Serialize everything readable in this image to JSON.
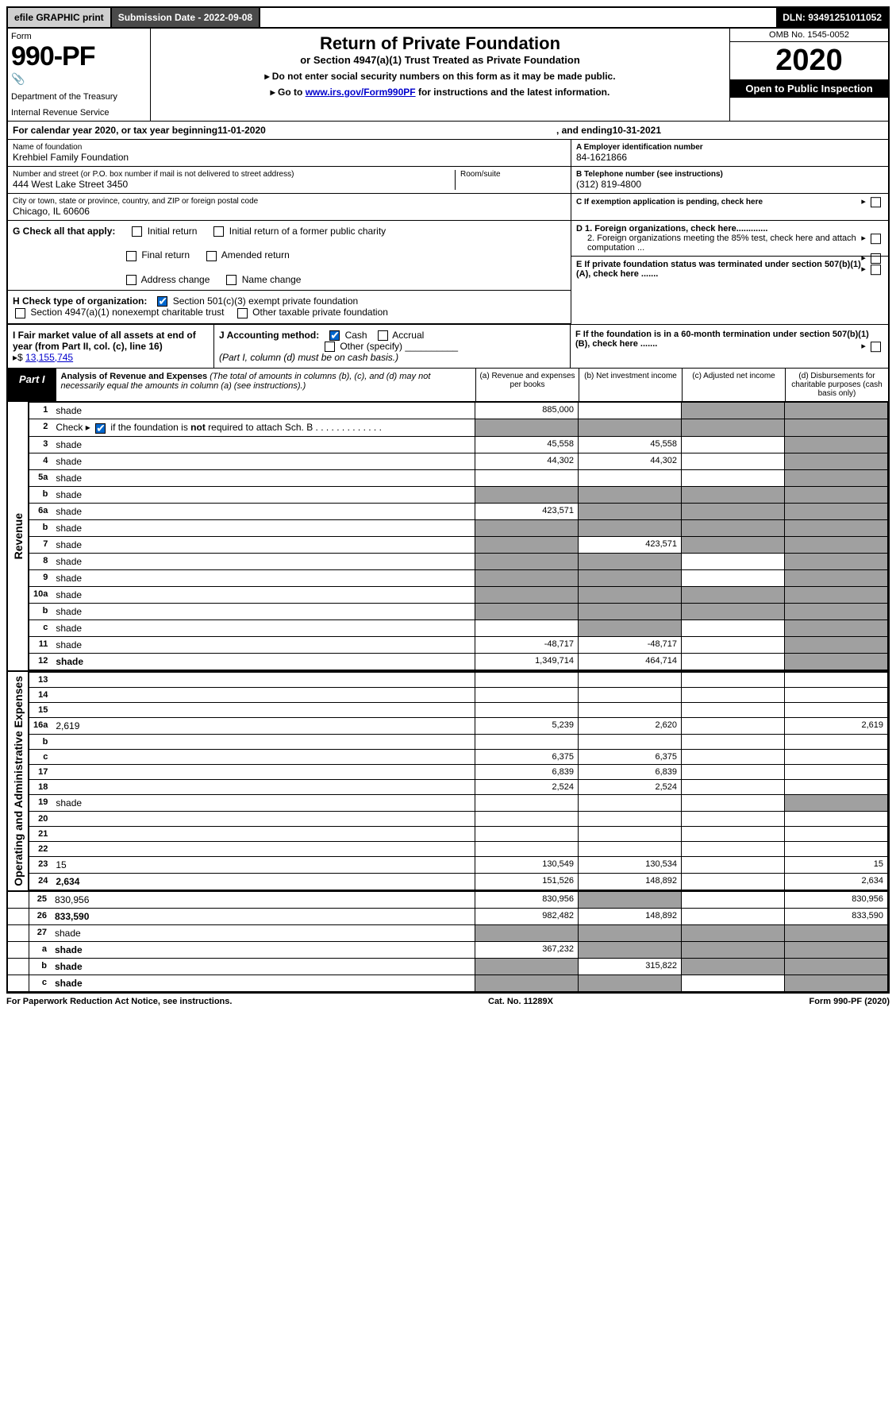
{
  "top": {
    "efile": "efile GRAPHIC print",
    "sub_label": "Submission Date - 2022-09-08",
    "dln": "DLN: 93491251011052"
  },
  "header": {
    "form_label": "Form",
    "form_num": "990-PF",
    "dept": "Department of the Treasury",
    "irs": "Internal Revenue Service",
    "title": "Return of Private Foundation",
    "sub": "or Section 4947(a)(1) Trust Treated as Private Foundation",
    "note1": "▸ Do not enter social security numbers on this form as it may be made public.",
    "note2_pre": "▸ Go to ",
    "note2_link": "www.irs.gov/Form990PF",
    "note2_post": " for instructions and the latest information.",
    "omb": "OMB No. 1545-0052",
    "year": "2020",
    "open": "Open to Public Inspection"
  },
  "calyear": {
    "pre": "For calendar year 2020, or tax year beginning ",
    "begin": "11-01-2020",
    "mid": ", and ending ",
    "end": "10-31-2021"
  },
  "info": {
    "name_lbl": "Name of foundation",
    "name": "Krehbiel Family Foundation",
    "addr_lbl": "Number and street (or P.O. box number if mail is not delivered to street address)",
    "addr": "444 West Lake Street 3450",
    "room_lbl": "Room/suite",
    "city_lbl": "City or town, state or province, country, and ZIP or foreign postal code",
    "city": "Chicago, IL  60606",
    "ein_lbl": "A Employer identification number",
    "ein": "84-1621866",
    "tel_lbl": "B Telephone number (see instructions)",
    "tel": "(312) 819-4800",
    "c": "C If exemption application is pending, check here",
    "d1": "D 1. Foreign organizations, check here.............",
    "d2": "2. Foreign organizations meeting the 85% test, check here and attach computation ...",
    "e": "E  If private foundation status was terminated under section 507(b)(1)(A), check here .......",
    "f": "F  If the foundation is in a 60-month termination under section 507(b)(1)(B), check here ......."
  },
  "g": {
    "label": "G Check all that apply:",
    "o1": "Initial return",
    "o2": "Initial return of a former public charity",
    "o3": "Final return",
    "o4": "Amended return",
    "o5": "Address change",
    "o6": "Name change"
  },
  "h": {
    "label": "H Check type of organization:",
    "o1": "Section 501(c)(3) exempt private foundation",
    "o2": "Section 4947(a)(1) nonexempt charitable trust",
    "o3": "Other taxable private foundation"
  },
  "i": {
    "label": "I Fair market value of all assets at end of year (from Part II, col. (c), line 16)",
    "arrow": "▸$",
    "val": "13,155,745"
  },
  "j": {
    "label": "J Accounting method:",
    "cash": "Cash",
    "accrual": "Accrual",
    "other": "Other (specify)",
    "note": "(Part I, column (d) must be on cash basis.)"
  },
  "part1": {
    "tab": "Part I",
    "title": "Analysis of Revenue and Expenses",
    "title_note": "(The total of amounts in columns (b), (c), and (d) may not necessarily equal the amounts in column (a) (see instructions).)",
    "col_a": "(a)   Revenue and expenses per books",
    "col_b": "(b)   Net investment income",
    "col_c": "(c)   Adjusted net income",
    "col_d": "(d)   Disbursements for charitable purposes (cash basis only)"
  },
  "sides": {
    "rev": "Revenue",
    "exp": "Operating and Administrative Expenses"
  },
  "rows": [
    {
      "n": "1",
      "d": "shade",
      "a": "885,000",
      "b": "",
      "c": "shade"
    },
    {
      "n": "2",
      "d": "shade",
      "a": "shade",
      "b": "shade",
      "c": "shade",
      "check": true
    },
    {
      "n": "3",
      "d": "shade",
      "a": "45,558",
      "b": "45,558",
      "c": ""
    },
    {
      "n": "4",
      "d": "shade",
      "a": "44,302",
      "b": "44,302",
      "c": ""
    },
    {
      "n": "5a",
      "d": "shade",
      "a": "",
      "b": "",
      "c": ""
    },
    {
      "n": "b",
      "d": "shade",
      "a": "shade",
      "b": "shade",
      "c": "shade"
    },
    {
      "n": "6a",
      "d": "shade",
      "a": "423,571",
      "b": "shade",
      "c": "shade"
    },
    {
      "n": "b",
      "d": "shade",
      "a": "shade",
      "b": "shade",
      "c": "shade"
    },
    {
      "n": "7",
      "d": "shade",
      "a": "shade",
      "b": "423,571",
      "c": "shade"
    },
    {
      "n": "8",
      "d": "shade",
      "a": "shade",
      "b": "shade",
      "c": ""
    },
    {
      "n": "9",
      "d": "shade",
      "a": "shade",
      "b": "shade",
      "c": ""
    },
    {
      "n": "10a",
      "d": "shade",
      "a": "shade",
      "b": "shade",
      "c": "shade"
    },
    {
      "n": "b",
      "d": "shade",
      "a": "shade",
      "b": "shade",
      "c": "shade"
    },
    {
      "n": "c",
      "d": "shade",
      "a": "",
      "b": "shade",
      "c": ""
    },
    {
      "n": "11",
      "d": "shade",
      "a": "-48,717",
      "b": "-48,717",
      "c": ""
    },
    {
      "n": "12",
      "d": "shade",
      "a": "1,349,714",
      "b": "464,714",
      "c": "",
      "bold": true
    },
    {
      "n": "13",
      "d": "",
      "a": "",
      "b": "",
      "c": ""
    },
    {
      "n": "14",
      "d": "",
      "a": "",
      "b": "",
      "c": ""
    },
    {
      "n": "15",
      "d": "",
      "a": "",
      "b": "",
      "c": ""
    },
    {
      "n": "16a",
      "d": "2,619",
      "a": "5,239",
      "b": "2,620",
      "c": ""
    },
    {
      "n": "b",
      "d": "",
      "a": "",
      "b": "",
      "c": ""
    },
    {
      "n": "c",
      "d": "",
      "a": "6,375",
      "b": "6,375",
      "c": ""
    },
    {
      "n": "17",
      "d": "",
      "a": "6,839",
      "b": "6,839",
      "c": ""
    },
    {
      "n": "18",
      "d": "",
      "a": "2,524",
      "b": "2,524",
      "c": ""
    },
    {
      "n": "19",
      "d": "shade",
      "a": "",
      "b": "",
      "c": ""
    },
    {
      "n": "20",
      "d": "",
      "a": "",
      "b": "",
      "c": ""
    },
    {
      "n": "21",
      "d": "",
      "a": "",
      "b": "",
      "c": ""
    },
    {
      "n": "22",
      "d": "",
      "a": "",
      "b": "",
      "c": ""
    },
    {
      "n": "23",
      "d": "15",
      "a": "130,549",
      "b": "130,534",
      "c": ""
    },
    {
      "n": "24",
      "d": "2,634",
      "a": "151,526",
      "b": "148,892",
      "c": "",
      "bold": true
    },
    {
      "n": "25",
      "d": "830,956",
      "a": "830,956",
      "b": "shade",
      "c": ""
    },
    {
      "n": "26",
      "d": "833,590",
      "a": "982,482",
      "b": "148,892",
      "c": "",
      "bold": true
    },
    {
      "n": "27",
      "d": "shade",
      "a": "shade",
      "b": "shade",
      "c": "shade"
    },
    {
      "n": "a",
      "d": "shade",
      "a": "367,232",
      "b": "shade",
      "c": "shade",
      "bold": true
    },
    {
      "n": "b",
      "d": "shade",
      "a": "shade",
      "b": "315,822",
      "c": "shade",
      "bold": true
    },
    {
      "n": "c",
      "d": "shade",
      "a": "shade",
      "b": "shade",
      "c": "",
      "bold": true
    }
  ],
  "footer": {
    "left": "For Paperwork Reduction Act Notice, see instructions.",
    "mid": "Cat. No. 11289X",
    "right": "Form 990-PF (2020)"
  }
}
